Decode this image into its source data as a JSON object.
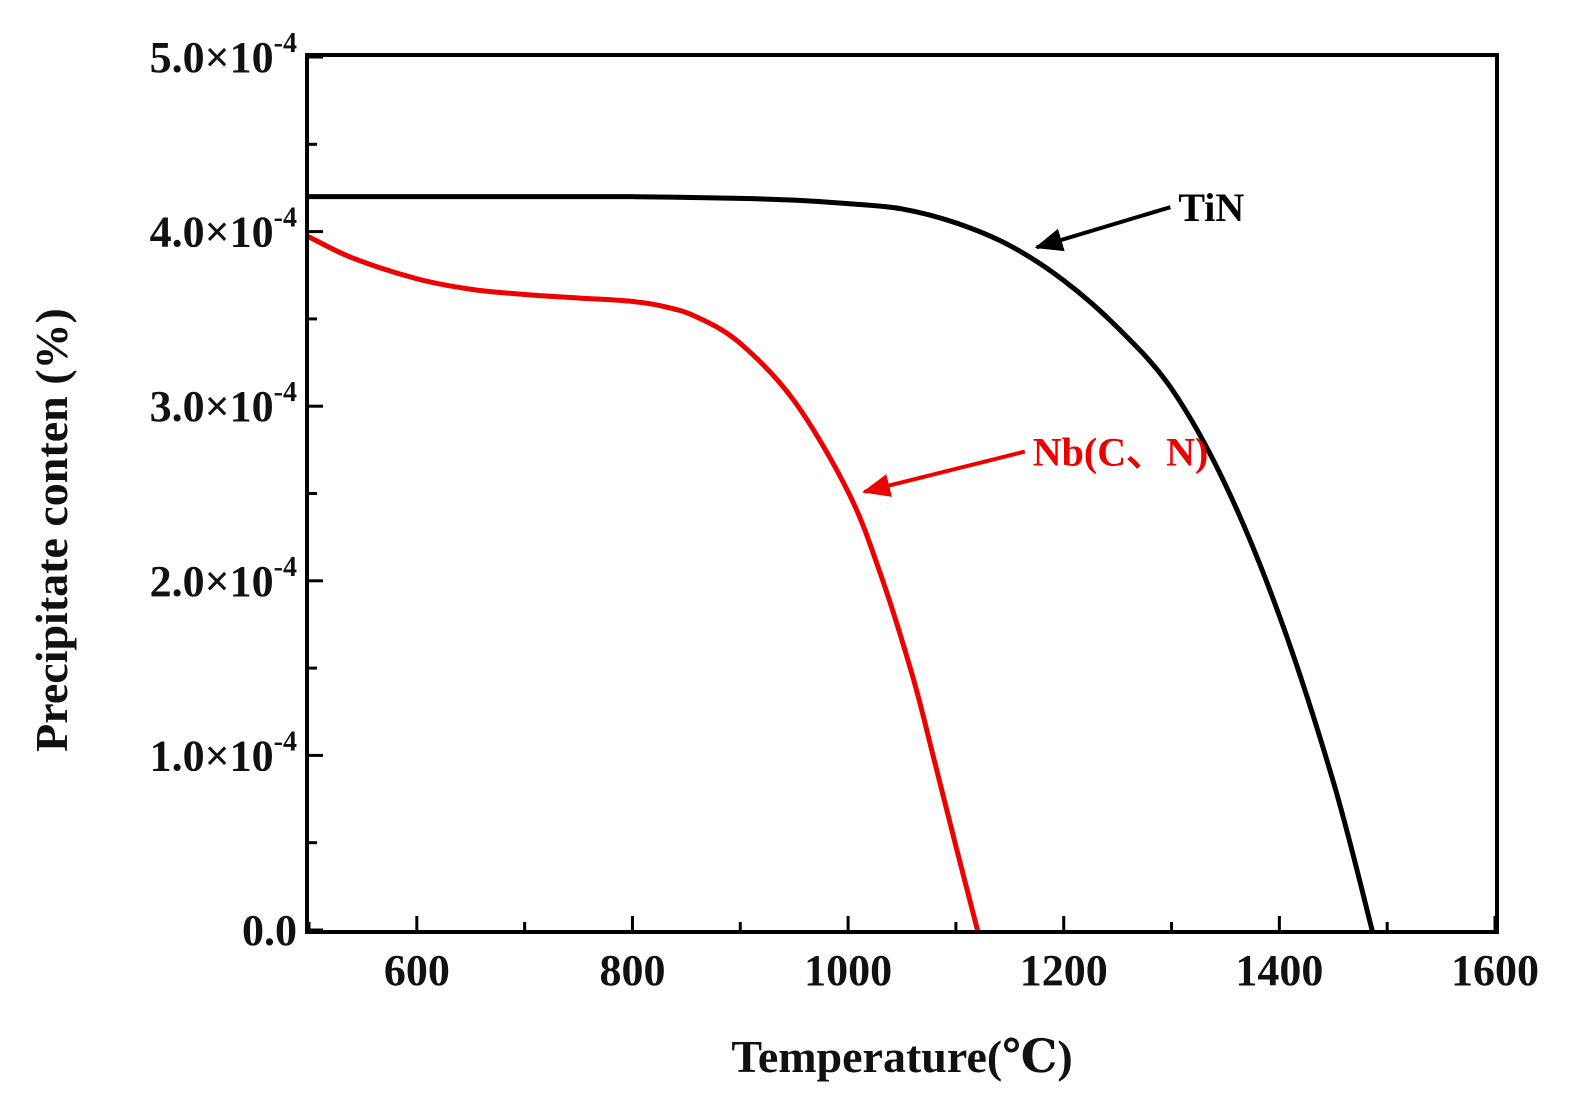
{
  "chart_data": {
    "type": "line",
    "title": "",
    "xlabel": "Temperature(℃)",
    "ylabel": "Precipitate conten (%)",
    "xlim": [
      500,
      1600
    ],
    "ylim": [
      0,
      0.0005
    ],
    "x_ticks": [
      600,
      800,
      1000,
      1200,
      1400,
      1600
    ],
    "x_tick_labels": [
      "600",
      "800",
      "1000",
      "1200",
      "1400",
      "1600"
    ],
    "y_ticks": [
      {
        "value": 0,
        "mantissa": "0.0",
        "times": "",
        "exponent": ""
      },
      {
        "value": 0.0001,
        "mantissa": "1.0",
        "times": "×10",
        "exponent": "-4"
      },
      {
        "value": 0.0002,
        "mantissa": "2.0",
        "times": "×10",
        "exponent": "-4"
      },
      {
        "value": 0.0003,
        "mantissa": "3.0",
        "times": "×10",
        "exponent": "-4"
      },
      {
        "value": 0.0004,
        "mantissa": "4.0",
        "times": "×10",
        "exponent": "-4"
      },
      {
        "value": 0.0005,
        "mantissa": "5.0",
        "times": "×10",
        "exponent": "-4"
      }
    ],
    "grid": false,
    "series": [
      {
        "name": "TiN",
        "color": "#000000",
        "x": [
          500,
          600,
          700,
          800,
          900,
          950,
          1000,
          1050,
          1100,
          1150,
          1200,
          1250,
          1300,
          1350,
          1400,
          1450,
          1486
        ],
        "y": [
          0.00042,
          0.00042,
          0.00042,
          0.00042,
          0.000419,
          0.000418,
          0.000416,
          0.000413,
          0.000405,
          0.000392,
          0.000372,
          0.000345,
          0.00031,
          0.000255,
          0.00018,
          8.5e-05,
          0.0
        ]
      },
      {
        "name": "Nb(C、N)",
        "color": "#ee0000",
        "x": [
          500,
          540,
          600,
          650,
          700,
          750,
          800,
          830,
          860,
          900,
          950,
          1000,
          1030,
          1060,
          1080,
          1100,
          1120
        ],
        "y": [
          0.000397,
          0.000385,
          0.000373,
          0.000367,
          0.000364,
          0.000362,
          0.00036,
          0.000357,
          0.000351,
          0.000336,
          0.000303,
          0.000251,
          0.000204,
          0.000145,
          9.7e-05,
          4.8e-05,
          0.0
        ]
      }
    ],
    "annotations": [
      {
        "text": "TiN",
        "series": "TiN",
        "arrow_to": [
          1175,
          0.000391
        ],
        "text_at": [
          1310,
          0.000414
        ]
      },
      {
        "text": "Nb(C、N)",
        "series": "Nb(C、N)",
        "arrow_to": [
          1015,
          0.000251
        ],
        "text_at": [
          1175,
          0.000274
        ]
      }
    ]
  }
}
